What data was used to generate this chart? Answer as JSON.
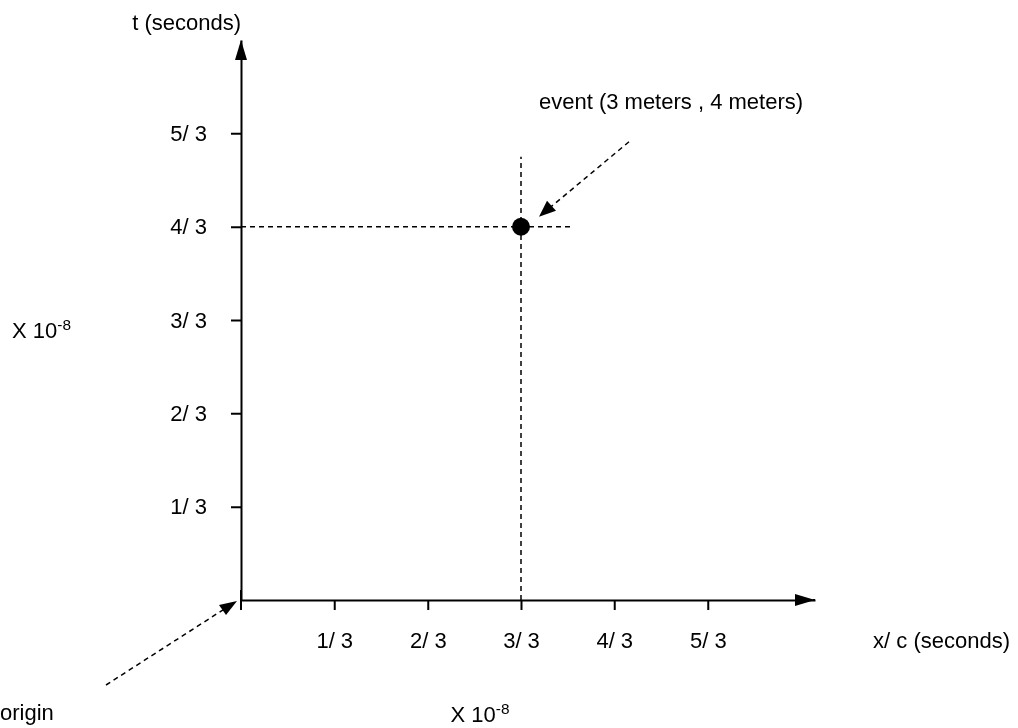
{
  "chart_data": {
    "type": "scatter",
    "xlabel": "x/ c (seconds)",
    "ylabel": "t (seconds)",
    "x": [
      1
    ],
    "values": [
      1.333
    ],
    "color": "#000000",
    "marker": "circle",
    "xlim": [
      0,
      2.05
    ],
    "ylim": [
      0,
      2
    ],
    "xticks": [
      {
        "value": 0.333,
        "label": "1/ 3"
      },
      {
        "value": 0.667,
        "label": "2/ 3"
      },
      {
        "value": 1,
        "label": "3/ 3"
      },
      {
        "value": 1.333,
        "label": "4/ 3"
      },
      {
        "value": 1.667,
        "label": "5/ 3"
      }
    ],
    "yticks": [
      {
        "value": 0.333,
        "label": "1/ 3"
      },
      {
        "value": 0.667,
        "label": "2/ 3"
      },
      {
        "value": 1,
        "label": "3/ 3"
      },
      {
        "value": 1.333,
        "label": "4/ 3"
      },
      {
        "value": 1.667,
        "label": "5/ 3"
      }
    ],
    "ref_lines": [
      {
        "axis": "x",
        "value": 1,
        "line_style": "dashed"
      },
      {
        "axis": "y",
        "value": 1.333,
        "line_style": "dashed"
      }
    ],
    "annotations": [
      "event  (3 meters , 4 meters)",
      "origin",
      "X 10$^{-8}$",
      "X 10$^{-8}$"
    ]
  }
}
